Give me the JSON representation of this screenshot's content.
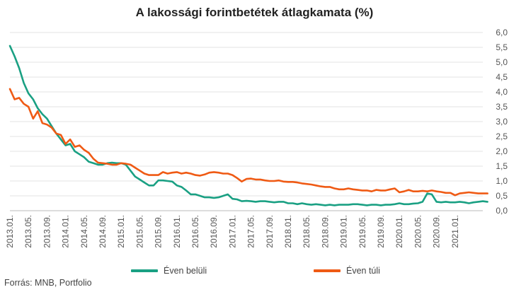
{
  "chart_data": {
    "type": "line",
    "title": "A lakossági forintbetétek átlagkamata (%)",
    "source": "Forrás: MNB, Portfolio",
    "ylim": [
      0,
      6
    ],
    "yticks": [
      "0,0",
      "0,5",
      "1,0",
      "1,5",
      "2,0",
      "2,5",
      "3,0",
      "3,5",
      "4,0",
      "4,5",
      "5,0",
      "5,5",
      "6,0"
    ],
    "y_axis_position": "right",
    "grid": "horizontal",
    "legend_position": "bottom",
    "x_tick_labels": [
      "2013.01.",
      "2013.05.",
      "2013.09.",
      "2014.01.",
      "2014.05.",
      "2014.09.",
      "2015.01.",
      "2015.05.",
      "2015.09.",
      "2016.01.",
      "2016.05.",
      "2016.09.",
      "2017.01.",
      "2017.05.",
      "2017.09.",
      "2018.01.",
      "2018.05.",
      "2018.09.",
      "2019.01.",
      "2019.05.",
      "2019.09.",
      "2020.01.",
      "2020.05.",
      "2020.09.",
      "2021.01."
    ],
    "x_start": "2013.01.",
    "x_end": "2021.04.",
    "series": [
      {
        "name": "Éven belüli",
        "color": "#1aa083",
        "values": [
          5.55,
          5.2,
          4.8,
          4.3,
          3.95,
          3.75,
          3.45,
          3.25,
          3.1,
          2.85,
          2.6,
          2.4,
          2.2,
          2.25,
          2.0,
          1.9,
          1.8,
          1.65,
          1.6,
          1.55,
          1.55,
          1.6,
          1.62,
          1.6,
          1.6,
          1.55,
          1.35,
          1.15,
          1.05,
          0.95,
          0.85,
          0.85,
          1.02,
          1.02,
          1.0,
          0.98,
          0.85,
          0.8,
          0.68,
          0.55,
          0.55,
          0.5,
          0.45,
          0.45,
          0.43,
          0.45,
          0.5,
          0.55,
          0.4,
          0.38,
          0.32,
          0.33,
          0.32,
          0.3,
          0.32,
          0.32,
          0.3,
          0.28,
          0.3,
          0.3,
          0.25,
          0.25,
          0.22,
          0.25,
          0.22,
          0.2,
          0.22,
          0.2,
          0.18,
          0.2,
          0.18,
          0.2,
          0.2,
          0.2,
          0.22,
          0.22,
          0.2,
          0.18,
          0.2,
          0.2,
          0.18,
          0.2,
          0.2,
          0.22,
          0.25,
          0.22,
          0.22,
          0.24,
          0.25,
          0.3,
          0.58,
          0.55,
          0.3,
          0.28,
          0.3,
          0.28,
          0.28,
          0.3,
          0.28,
          0.25,
          0.28,
          0.3,
          0.32,
          0.3
        ]
      },
      {
        "name": "Éven túli",
        "color": "#ef5a14",
        "values": [
          4.1,
          3.75,
          3.8,
          3.6,
          3.5,
          3.1,
          3.35,
          2.95,
          2.9,
          2.8,
          2.6,
          2.55,
          2.25,
          2.4,
          2.15,
          2.2,
          2.05,
          1.95,
          1.75,
          1.62,
          1.6,
          1.58,
          1.55,
          1.55,
          1.6,
          1.58,
          1.55,
          1.45,
          1.35,
          1.25,
          1.2,
          1.2,
          1.2,
          1.3,
          1.25,
          1.28,
          1.3,
          1.25,
          1.28,
          1.25,
          1.2,
          1.18,
          1.22,
          1.28,
          1.3,
          1.28,
          1.25,
          1.25,
          1.2,
          1.1,
          0.98,
          1.07,
          1.08,
          1.05,
          1.05,
          1.02,
          1.0,
          1.0,
          1.02,
          0.98,
          0.97,
          0.97,
          0.95,
          0.92,
          0.9,
          0.88,
          0.85,
          0.82,
          0.8,
          0.8,
          0.75,
          0.72,
          0.72,
          0.75,
          0.72,
          0.7,
          0.68,
          0.68,
          0.65,
          0.7,
          0.68,
          0.68,
          0.72,
          0.75,
          0.62,
          0.65,
          0.7,
          0.65,
          0.65,
          0.67,
          0.65,
          0.68,
          0.65,
          0.63,
          0.6,
          0.6,
          0.52,
          0.58,
          0.6,
          0.62,
          0.6,
          0.58,
          0.58,
          0.58
        ]
      }
    ]
  }
}
